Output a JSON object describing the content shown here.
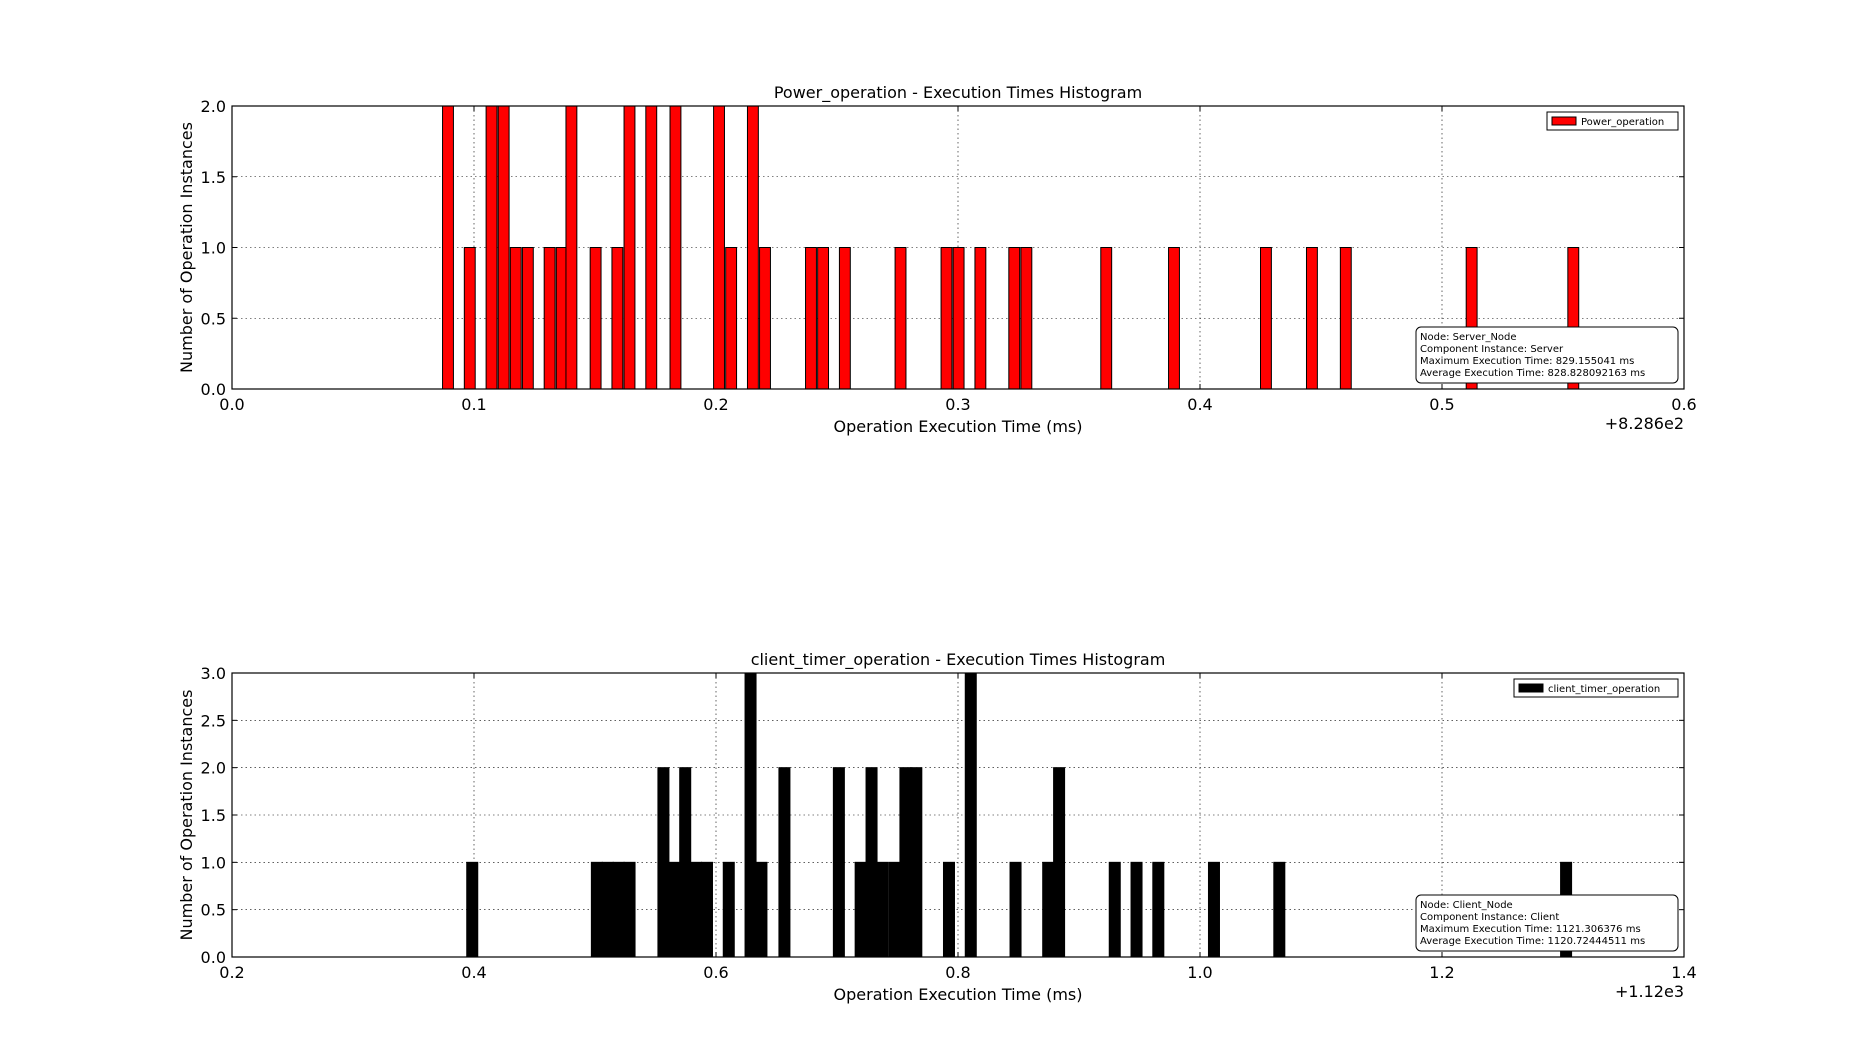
{
  "chart_data": [
    {
      "type": "bar",
      "title": "Power_operation - Execution Times Histogram",
      "xlabel": "Operation Execution Time (ms)",
      "ylabel": "Number of Operation Instances",
      "offset_label": "+8.286e2",
      "xlim": [
        0.0,
        0.6
      ],
      "ylim": [
        0.0,
        2.0
      ],
      "xticks": [
        "0.0",
        "0.1",
        "0.2",
        "0.3",
        "0.4",
        "0.5",
        "0.6"
      ],
      "yticks": [
        "0.0",
        "0.5",
        "1.0",
        "1.5",
        "2.0"
      ],
      "grid": true,
      "legend_position": "top-right",
      "bin_width": 0.0045,
      "series": [
        {
          "name": "Power_operation",
          "color": "#ff0000",
          "bins": [
            [
              0.087,
              2
            ],
            [
              0.096,
              1
            ],
            [
              0.105,
              2
            ],
            [
              0.11,
              2
            ],
            [
              0.115,
              1
            ],
            [
              0.12,
              1
            ],
            [
              0.129,
              1
            ],
            [
              0.134,
              1
            ],
            [
              0.138,
              2
            ],
            [
              0.148,
              1
            ],
            [
              0.157,
              1
            ],
            [
              0.162,
              2
            ],
            [
              0.171,
              2
            ],
            [
              0.181,
              2
            ],
            [
              0.199,
              2
            ],
            [
              0.204,
              1
            ],
            [
              0.213,
              2
            ],
            [
              0.218,
              1
            ],
            [
              0.237,
              1
            ],
            [
              0.242,
              1
            ],
            [
              0.251,
              1
            ],
            [
              0.274,
              1
            ],
            [
              0.293,
              1
            ],
            [
              0.298,
              1
            ],
            [
              0.307,
              1
            ],
            [
              0.321,
              1
            ],
            [
              0.326,
              1
            ],
            [
              0.359,
              1
            ],
            [
              0.387,
              1
            ],
            [
              0.425,
              1
            ],
            [
              0.444,
              1
            ],
            [
              0.458,
              1
            ],
            [
              0.51,
              1
            ],
            [
              0.552,
              1
            ]
          ]
        }
      ],
      "info_box": [
        "Node: Server_Node",
        "Component Instance: Server",
        "Maximum Execution Time: 829.155041 ms",
        "Average Execution Time: 828.828092163 ms"
      ]
    },
    {
      "type": "bar",
      "title": "client_timer_operation - Execution Times Histogram",
      "xlabel": "Operation Execution Time (ms)",
      "ylabel": "Number of Operation Instances",
      "offset_label": "+1.12e3",
      "xlim": [
        0.2,
        1.4
      ],
      "ylim": [
        0.0,
        3.0
      ],
      "xticks": [
        "0.2",
        "0.4",
        "0.6",
        "0.8",
        "1.0",
        "1.2",
        "1.4"
      ],
      "yticks": [
        "0.0",
        "0.5",
        "1.0",
        "1.5",
        "2.0",
        "2.5",
        "3.0"
      ],
      "grid": true,
      "legend_position": "top-right",
      "bin_width": 0.0091,
      "series": [
        {
          "name": "client_timer_operation",
          "color": "#000000",
          "bins": [
            [
              0.394,
              1
            ],
            [
              0.497,
              1
            ],
            [
              0.506,
              1
            ],
            [
              0.515,
              1
            ],
            [
              0.524,
              1
            ],
            [
              0.552,
              2
            ],
            [
              0.561,
              1
            ],
            [
              0.57,
              2
            ],
            [
              0.579,
              1
            ],
            [
              0.588,
              1
            ],
            [
              0.606,
              1
            ],
            [
              0.624,
              3
            ],
            [
              0.633,
              1
            ],
            [
              0.652,
              2
            ],
            [
              0.697,
              2
            ],
            [
              0.715,
              1
            ],
            [
              0.724,
              2
            ],
            [
              0.733,
              1
            ],
            [
              0.743,
              1
            ],
            [
              0.752,
              2
            ],
            [
              0.761,
              2
            ],
            [
              0.788,
              1
            ],
            [
              0.806,
              3
            ],
            [
              0.843,
              1
            ],
            [
              0.87,
              1
            ],
            [
              0.879,
              2
            ],
            [
              0.925,
              1
            ],
            [
              0.943,
              1
            ],
            [
              0.961,
              1
            ],
            [
              1.007,
              1
            ],
            [
              1.061,
              1
            ],
            [
              1.298,
              1
            ]
          ]
        }
      ],
      "info_box": [
        "Node: Client_Node",
        "Component Instance: Client",
        "Maximum Execution Time: 1121.306376 ms",
        "Average Execution Time: 1120.72444511 ms"
      ]
    }
  ]
}
